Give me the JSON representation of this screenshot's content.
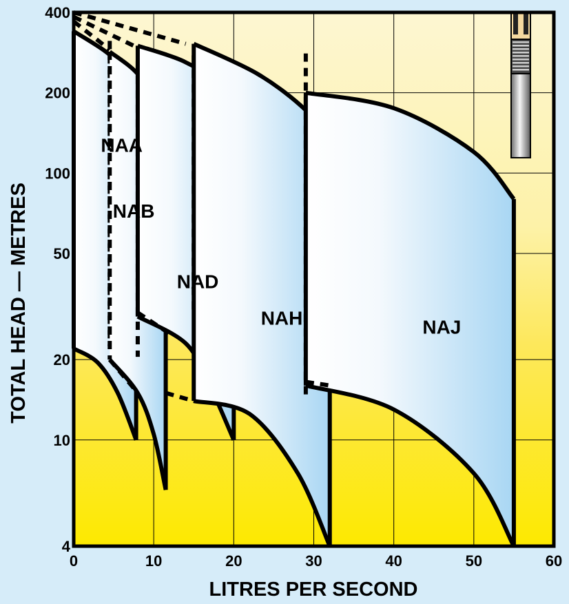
{
  "chart_data": {
    "type": "area",
    "xlabel": "LITRES PER SECOND",
    "ylabel": "TOTAL HEAD — METRES",
    "xlim": [
      0,
      60
    ],
    "ylim": [
      4,
      400
    ],
    "y_scale": "log",
    "grid": true,
    "x_ticks": [
      {
        "value": 0,
        "label": "0"
      },
      {
        "value": 10,
        "label": "10"
      },
      {
        "value": 20,
        "label": "20"
      },
      {
        "value": 30,
        "label": "30"
      },
      {
        "value": 40,
        "label": "40"
      },
      {
        "value": 50,
        "label": "50"
      },
      {
        "value": 60,
        "label": "60"
      }
    ],
    "y_ticks": [
      {
        "value": 4,
        "label": "4"
      },
      {
        "value": 10,
        "label": "10"
      },
      {
        "value": 20,
        "label": "20"
      },
      {
        "value": 50,
        "label": "50"
      },
      {
        "value": 100,
        "label": "100"
      },
      {
        "value": 200,
        "label": "200"
      },
      {
        "value": 400,
        "label": "400"
      }
    ],
    "series": [
      {
        "name": "NAA",
        "label_at": [
          6,
          120
        ],
        "top": [
          [
            0,
            340
          ],
          [
            4,
            285
          ],
          [
            6,
            245
          ],
          [
            7.8,
            165
          ]
        ],
        "bottom": [
          [
            0,
            22
          ],
          [
            3,
            19.5
          ],
          [
            5.5,
            15
          ],
          [
            7.8,
            10
          ]
        ],
        "left_edge": "solid",
        "divider_x": 4.5
      },
      {
        "name": "NAB",
        "label_at": [
          7.5,
          68
        ],
        "top": [
          [
            4.5,
            285
          ],
          [
            8,
            235
          ],
          [
            10,
            180
          ],
          [
            11.5,
            130
          ]
        ],
        "bottom": [
          [
            4.5,
            20
          ],
          [
            8,
            15
          ],
          [
            10,
            10.5
          ],
          [
            11.5,
            6.5
          ]
        ],
        "left_edge": "dashed",
        "divider_x": 8
      },
      {
        "name": "NAD",
        "label_at": [
          15.5,
          37
        ],
        "top": [
          [
            8,
            300
          ],
          [
            14,
            260
          ],
          [
            17,
            215
          ],
          [
            20,
            110
          ]
        ],
        "bottom": [
          [
            8,
            29
          ],
          [
            14,
            23
          ],
          [
            17,
            16
          ],
          [
            20,
            10
          ]
        ],
        "left_edge": "solid",
        "divider_x": 15
      },
      {
        "name": "NAH",
        "label_at": [
          26,
          27
        ],
        "top": [
          [
            15,
            305
          ],
          [
            23,
            235
          ],
          [
            29,
            172
          ],
          [
            32,
            130
          ]
        ],
        "bottom": [
          [
            15,
            14
          ],
          [
            22,
            12.5
          ],
          [
            28,
            7.5
          ],
          [
            32,
            4
          ]
        ],
        "left_edge": "solid",
        "divider_x": 29
      },
      {
        "name": "NAJ",
        "label_at": [
          46,
          25
        ],
        "top": [
          [
            29,
            200
          ],
          [
            40,
            175
          ],
          [
            50,
            120
          ],
          [
            55,
            80
          ]
        ],
        "bottom": [
          [
            29,
            16
          ],
          [
            40,
            13
          ],
          [
            50,
            7.5
          ],
          [
            55,
            4
          ]
        ],
        "left_edge": "solid",
        "divider_x": null
      }
    ],
    "dashed_extensions": [
      {
        "from": [
          0,
          400
        ],
        "to": [
          14,
          305
        ]
      },
      {
        "from": [
          0,
          385
        ],
        "to": [
          8,
          295
        ]
      },
      {
        "from": [
          0,
          370
        ],
        "to": [
          4.5,
          290
        ]
      },
      {
        "from": [
          4.5,
          20
        ],
        "to": [
          8,
          15
        ]
      },
      {
        "from": [
          8,
          30
        ],
        "to": [
          12,
          25
        ]
      },
      {
        "from": [
          11.5,
          15
        ],
        "to": [
          15,
          14
        ]
      },
      {
        "from": [
          29,
          16.5
        ],
        "to": [
          32,
          16
        ]
      }
    ],
    "colors": {
      "background": "#d6ecf9",
      "yellow_top": "#fdf6d2",
      "yellow_bottom": "#fde900",
      "region_light": "#ffffff",
      "region_blue": "#a8d6f3",
      "line": "#000000"
    },
    "decoration": "submersible-pump-image"
  }
}
